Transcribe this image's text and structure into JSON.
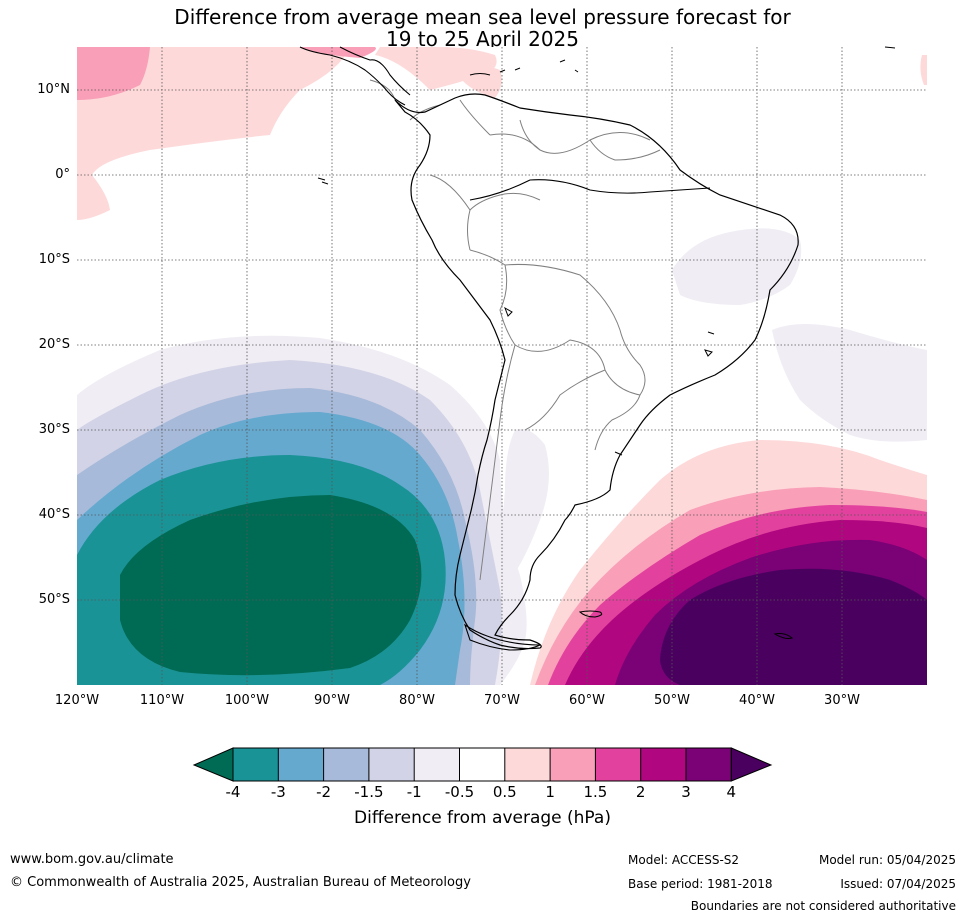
{
  "title": {
    "line1": "Difference from average mean sea level pressure forecast for",
    "line2": "19 to 25 April 2025"
  },
  "latitude_labels": [
    "10°N",
    "0°",
    "10°S",
    "20°S",
    "30°S",
    "40°S",
    "50°S"
  ],
  "longitude_labels": [
    "120°W",
    "110°W",
    "100°W",
    "90°W",
    "80°W",
    "70°W",
    "60°W",
    "50°W",
    "40°W",
    "30°W"
  ],
  "colorbar": {
    "title": "Difference from average (hPa)",
    "tick_labels": [
      "-4",
      "-3",
      "-2",
      "-1.5",
      "-1",
      "-0.5",
      "0.5",
      "1",
      "1.5",
      "2",
      "3",
      "4"
    ],
    "colors": {
      "below_-4": "#006b54",
      "-4_to_-3": "#1a9396",
      "-3_to_-2": "#65a9cf",
      "-2_to_-1.5": "#a8bad9",
      "-1.5_to_-1": "#d2d3e6",
      "-1_to_-0.5": "#f0edf4",
      "-0.5_to_0.5": "#ffffff",
      "0.5_to_1": "#fdd9da",
      "1_to_1.5": "#f99fb8",
      "1.5_to_2": "#e2429d",
      "2_to_3": "#b00680",
      "3_to_4": "#7a0176",
      "above_4": "#4a005f"
    }
  },
  "footer": {
    "website": "www.bom.gov.au/climate",
    "copyright": "© Commonwealth of Australia 2025, Australian Bureau of Meteorology",
    "model": "Model: ACCESS-S2",
    "base_period": "Base period: 1981-2018",
    "model_run": "Model run: 05/04/2025",
    "issued": "Issued: 07/04/2025",
    "disclaimer": "Boundaries are not considered authoritative"
  }
}
